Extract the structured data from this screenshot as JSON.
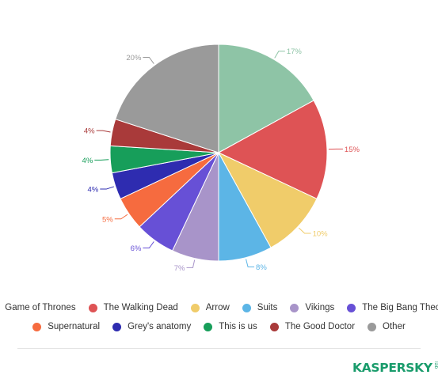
{
  "chart_data": {
    "type": "pie",
    "title": "",
    "slices": [
      {
        "label": "Game of Thrones",
        "value": 17,
        "value_label": "17%",
        "color": "#8ec4a6"
      },
      {
        "label": "The Walking Dead",
        "value": 15,
        "value_label": "15%",
        "color": "#de5355"
      },
      {
        "label": "Arrow",
        "value": 10,
        "value_label": "10%",
        "color": "#f0cc6a"
      },
      {
        "label": "Suits",
        "value": 8,
        "value_label": "8%",
        "color": "#5cb5e6"
      },
      {
        "label": "Vikings",
        "value": 7,
        "value_label": "7%",
        "color": "#a894c9"
      },
      {
        "label": "The Big Bang Theory",
        "value": 6,
        "value_label": "6%",
        "color": "#6750d6"
      },
      {
        "label": "Supernatural",
        "value": 5,
        "value_label": "5%",
        "color": "#f66b3f"
      },
      {
        "label": "Grey's anatomy",
        "value": 4,
        "value_label": "4%",
        "color": "#2e2cb0"
      },
      {
        "label": "This is us",
        "value": 4,
        "value_label": "4%",
        "color": "#179e5a"
      },
      {
        "label": "The Good Doctor",
        "value": 4,
        "value_label": "4%",
        "color": "#a93a3a"
      },
      {
        "label": "Other",
        "value": 20,
        "value_label": "20%",
        "color": "#9a9a9a"
      }
    ],
    "legend_placement": "bottom"
  },
  "brand": {
    "name": "KASPERSKY",
    "sub": "lab"
  }
}
